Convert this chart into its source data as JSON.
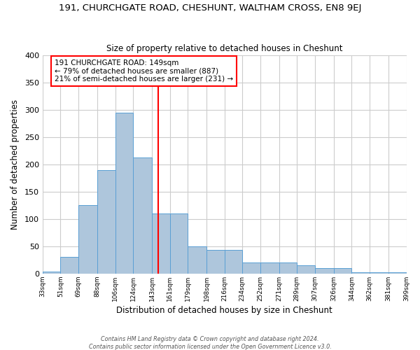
{
  "title": "191, CHURCHGATE ROAD, CHESHUNT, WALTHAM CROSS, EN8 9EJ",
  "subtitle": "Size of property relative to detached houses in Cheshunt",
  "xlabel": "Distribution of detached houses by size in Cheshunt",
  "ylabel": "Number of detached properties",
  "footer_lines": [
    "Contains HM Land Registry data © Crown copyright and database right 2024.",
    "Contains public sector information licensed under the Open Government Licence v3.0."
  ],
  "bin_edges": [
    33,
    51,
    69,
    88,
    106,
    124,
    143,
    161,
    179,
    198,
    216,
    234,
    252,
    271,
    289,
    307,
    326,
    344,
    362,
    381,
    399
  ],
  "bin_labels": [
    "33sqm",
    "51sqm",
    "69sqm",
    "88sqm",
    "106sqm",
    "124sqm",
    "143sqm",
    "161sqm",
    "179sqm",
    "198sqm",
    "216sqm",
    "234sqm",
    "252sqm",
    "271sqm",
    "289sqm",
    "307sqm",
    "326sqm",
    "344sqm",
    "362sqm",
    "381sqm",
    "399sqm"
  ],
  "counts": [
    4,
    30,
    125,
    190,
    295,
    212,
    110,
    110,
    50,
    43,
    43,
    20,
    20,
    20,
    15,
    10,
    10,
    3,
    2,
    2
  ],
  "bar_color": "#aec6dc",
  "bar_edge_color": "#5a9fd4",
  "vline_x": 149,
  "vline_color": "red",
  "annotation_line1": "191 CHURCHGATE ROAD: 149sqm",
  "annotation_line2": "← 79% of detached houses are smaller (887)",
  "annotation_line3": "21% of semi-detached houses are larger (231) →",
  "annotation_box_color": "white",
  "annotation_box_edgecolor": "red",
  "ylim": [
    0,
    400
  ],
  "yticks": [
    0,
    50,
    100,
    150,
    200,
    250,
    300,
    350,
    400
  ],
  "bg_color": "white",
  "grid_color": "#cccccc"
}
